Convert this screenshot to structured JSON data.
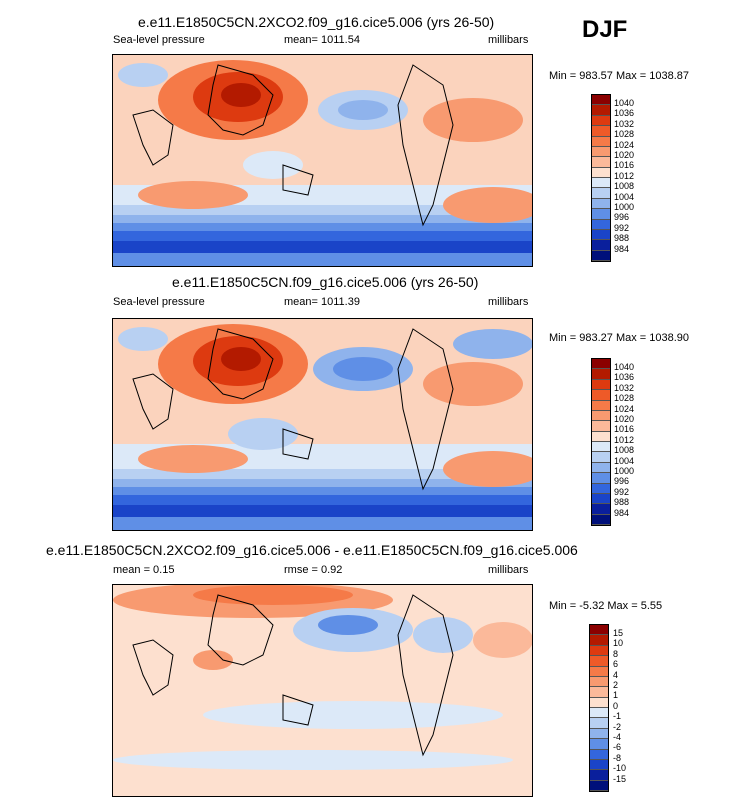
{
  "season": "DJF",
  "panels": [
    {
      "title": "e.e11.E1850C5CN.2XCO2.f09_g16.cice5.006 (yrs 26-50)",
      "left_label": "Sea-level pressure",
      "center_label": "mean= 1011.54",
      "right_label": "millibars",
      "minmax": "Min = 983.57 Max = 1038.87"
    },
    {
      "title": "e.e11.E1850C5CN.f09_g16.cice5.006 (yrs 26-50)",
      "left_label": "Sea-level pressure",
      "center_label": "mean= 1011.39",
      "right_label": "millibars",
      "minmax": "Min = 983.27 Max = 1038.90"
    },
    {
      "title": "e.e11.E1850C5CN.2XCO2.f09_g16.cice5.006 - e.e11.E1850C5CN.f09_g16.cice5.006",
      "left_label": "mean =   0.15",
      "center_label": "rmse =   0.92",
      "right_label": "millibars",
      "minmax": "Min =  -5.32 Max =   5.55"
    }
  ],
  "colorbar_abs": {
    "labels": [
      "1040",
      "1036",
      "1032",
      "1028",
      "1024",
      "1020",
      "1016",
      "1012",
      "1008",
      "1004",
      "1000",
      "996",
      "992",
      "988",
      "984"
    ],
    "colors": [
      "#8b0000",
      "#b31a00",
      "#dd3a10",
      "#ee5a28",
      "#f57a48",
      "#f89a70",
      "#fbb99a",
      "#fde0cf",
      "#dce9f8",
      "#b8d0f2",
      "#8fb3ec",
      "#5f8fe6",
      "#3366dd",
      "#1a44c8",
      "#0a1f9c",
      "#00107a"
    ]
  },
  "colorbar_diff": {
    "labels": [
      "15",
      "10",
      "8",
      "6",
      "4",
      "2",
      "1",
      "0",
      "-1",
      "-2",
      "-4",
      "-6",
      "-8",
      "-10",
      "-15"
    ],
    "colors": [
      "#8b0000",
      "#b31a00",
      "#dd3a10",
      "#ee5a28",
      "#f57a48",
      "#f89a70",
      "#fbb99a",
      "#fde0cf",
      "#dce9f8",
      "#b8d0f2",
      "#8fb3ec",
      "#5f8fe6",
      "#3366dd",
      "#1a44c8",
      "#0a1f9c",
      "#00107a"
    ]
  }
}
